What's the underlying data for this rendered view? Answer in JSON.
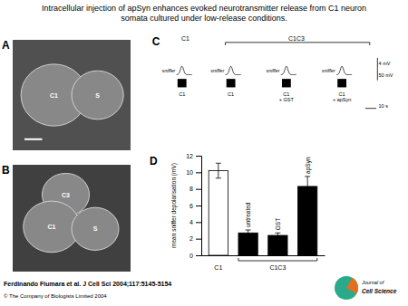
{
  "chart_data": {
    "type": "bar",
    "title": "Intracellular injection of apSyn enhances evoked neurotransmitter release from C1 neuron",
    "subtitle": "somata cultured under low-release conditions.",
    "ylabel": "mean sniffer depolarisation (mV)",
    "categories": [
      "C1",
      "untreated",
      "GST",
      "apSyn"
    ],
    "values": [
      10.2,
      2.7,
      2.4,
      8.3
    ],
    "errors": [
      0.9,
      0.35,
      0.3,
      1.2
    ],
    "colors": [
      "#ffffff",
      "#000000",
      "#000000",
      "#000000"
    ],
    "ylim": [
      0,
      12
    ],
    "yticks": [
      0,
      2,
      4,
      6,
      8,
      10,
      12
    ],
    "grid": false,
    "annotations": [
      "A",
      "B",
      "C",
      "D",
      "C1",
      "S",
      "C3",
      "C1",
      "S",
      "C1",
      "C1C3",
      "sniffer",
      "sniffer",
      "sniffer",
      "sniffer",
      "C1",
      "C1",
      "C1\n+ GST",
      "C1\n+ apSyn",
      "4 mV",
      "50 mV",
      "10 s",
      "C1C3",
      "Ferdinando Fiumara et al. J Cell Sci 2004;117:5145-5154",
      "© The Company of Biologists Limited 2004",
      "Journal of",
      "Cell Science"
    ]
  }
}
